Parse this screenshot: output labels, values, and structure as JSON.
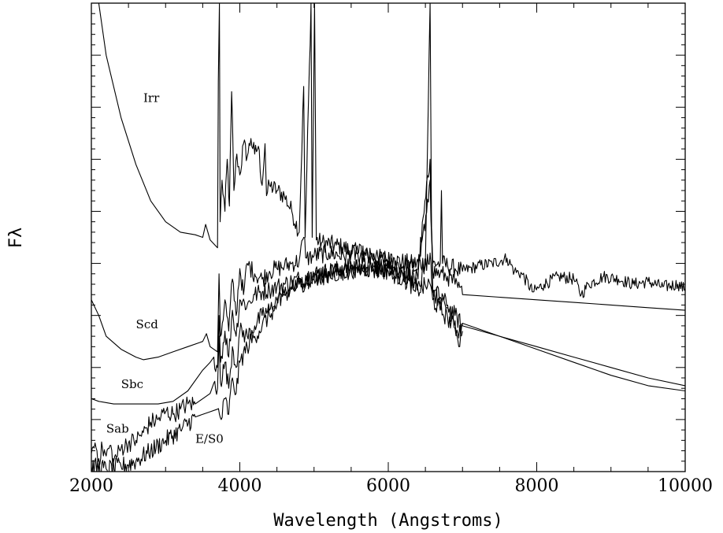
{
  "chart_data": {
    "type": "line",
    "title": "",
    "xlabel": "Wavelength (Angstroms)",
    "ylabel": "Fλ",
    "xlim": [
      2000,
      10000
    ],
    "ylim": [
      0,
      9
    ],
    "x_ticks": [
      "2000",
      "4000",
      "6000",
      "8000",
      "10000"
    ],
    "y_ticks_labeled": false,
    "grid": false,
    "legend": "none",
    "series": [
      {
        "name": "Irr",
        "label_at": [
          2700,
          7.1
        ],
        "points": [
          [
            2100,
            9.0
          ],
          [
            2200,
            8.0
          ],
          [
            2400,
            6.8
          ],
          [
            2600,
            5.9
          ],
          [
            2800,
            5.2
          ],
          [
            3000,
            4.8
          ],
          [
            3200,
            4.6
          ],
          [
            3400,
            4.55
          ],
          [
            3500,
            4.5
          ],
          [
            3540,
            4.75
          ],
          [
            3600,
            4.45
          ],
          [
            3700,
            4.3
          ],
          [
            3710,
            7.5
          ],
          [
            3725,
            9.0
          ],
          [
            3735,
            4.8
          ],
          [
            3760,
            5.6
          ],
          [
            3800,
            5.0
          ],
          [
            3830,
            6.0
          ],
          [
            3860,
            5.1
          ],
          [
            3890,
            7.3
          ],
          [
            3920,
            5.4
          ],
          [
            3960,
            6.1
          ],
          [
            4000,
            5.7
          ],
          [
            4050,
            6.3
          ],
          [
            4100,
            6.05
          ],
          [
            4150,
            6.4
          ],
          [
            4200,
            6.1
          ],
          [
            4250,
            6.25
          ],
          [
            4300,
            5.5
          ],
          [
            4340,
            6.3
          ],
          [
            4360,
            5.3
          ],
          [
            4400,
            5.5
          ],
          [
            4500,
            5.4
          ],
          [
            4600,
            5.3
          ],
          [
            4700,
            5.0
          ],
          [
            4800,
            4.6
          ],
          [
            4861,
            7.4
          ],
          [
            4880,
            4.5
          ],
          [
            4959,
            9.0
          ],
          [
            4975,
            4.5
          ],
          [
            5007,
            9.0
          ],
          [
            5030,
            4.45
          ],
          [
            5100,
            4.4
          ],
          [
            5300,
            4.35
          ],
          [
            5500,
            4.25
          ],
          [
            5700,
            4.15
          ],
          [
            5900,
            4.1
          ],
          [
            6100,
            4.05
          ],
          [
            6300,
            4.0
          ],
          [
            6500,
            4.0
          ],
          [
            6563,
            9.0
          ],
          [
            6583,
            4.7
          ],
          [
            6600,
            4.0
          ],
          [
            6700,
            4.0
          ],
          [
            6716,
            5.4
          ],
          [
            6731,
            4.0
          ],
          [
            6800,
            3.95
          ],
          [
            6900,
            3.9
          ],
          [
            7000,
            3.85
          ],
          [
            7200,
            3.95
          ],
          [
            7400,
            4.0
          ],
          [
            7600,
            4.1
          ],
          [
            7700,
            3.85
          ],
          [
            7800,
            3.8
          ],
          [
            7950,
            3.45
          ],
          [
            8100,
            3.6
          ],
          [
            8300,
            3.75
          ],
          [
            8500,
            3.7
          ],
          [
            8600,
            3.4
          ],
          [
            8700,
            3.6
          ],
          [
            8900,
            3.75
          ],
          [
            9100,
            3.7
          ],
          [
            9300,
            3.6
          ],
          [
            9500,
            3.65
          ],
          [
            9700,
            3.55
          ],
          [
            9900,
            3.6
          ],
          [
            10000,
            3.5
          ]
        ]
      },
      {
        "name": "Scd",
        "label_at": [
          2600,
          2.75
        ],
        "points": [
          [
            2000,
            3.3
          ],
          [
            2100,
            3.0
          ],
          [
            2200,
            2.6
          ],
          [
            2400,
            2.35
          ],
          [
            2600,
            2.2
          ],
          [
            2700,
            2.15
          ],
          [
            2900,
            2.2
          ],
          [
            3100,
            2.3
          ],
          [
            3300,
            2.4
          ],
          [
            3500,
            2.5
          ],
          [
            3550,
            2.65
          ],
          [
            3600,
            2.4
          ],
          [
            3700,
            2.3
          ],
          [
            3720,
            3.8
          ],
          [
            3740,
            2.6
          ],
          [
            3800,
            3.3
          ],
          [
            3850,
            2.7
          ],
          [
            3900,
            3.7
          ],
          [
            3950,
            3.0
          ],
          [
            4000,
            3.9
          ],
          [
            4050,
            3.4
          ],
          [
            4100,
            4.0
          ],
          [
            4200,
            3.8
          ],
          [
            4300,
            3.7
          ],
          [
            4400,
            3.85
          ],
          [
            4500,
            3.9
          ],
          [
            4600,
            3.95
          ],
          [
            4700,
            4.0
          ],
          [
            4800,
            4.05
          ],
          [
            4861,
            4.5
          ],
          [
            4900,
            4.1
          ],
          [
            5000,
            4.15
          ],
          [
            5200,
            4.2
          ],
          [
            5400,
            4.15
          ],
          [
            5600,
            4.2
          ],
          [
            5800,
            4.1
          ],
          [
            6000,
            4.05
          ],
          [
            6200,
            3.95
          ],
          [
            6400,
            3.9
          ],
          [
            6563,
            6.0
          ],
          [
            6600,
            3.85
          ],
          [
            6700,
            3.8
          ],
          [
            6800,
            3.75
          ],
          [
            6900,
            3.6
          ],
          [
            7000,
            3.4
          ],
          [
            7500,
            3.35
          ],
          [
            8000,
            3.3
          ],
          [
            8500,
            3.25
          ],
          [
            9000,
            3.2
          ],
          [
            9500,
            3.15
          ],
          [
            10000,
            3.1
          ]
        ]
      },
      {
        "name": "Sbc",
        "label_at": [
          2400,
          1.6
        ],
        "points": [
          [
            2000,
            1.4
          ],
          [
            2100,
            1.35
          ],
          [
            2300,
            1.3
          ],
          [
            2600,
            1.3
          ],
          [
            2900,
            1.3
          ],
          [
            3100,
            1.35
          ],
          [
            3300,
            1.55
          ],
          [
            3500,
            1.95
          ],
          [
            3600,
            2.1
          ],
          [
            3650,
            2.2
          ],
          [
            3700,
            2.0
          ],
          [
            3720,
            3.0
          ],
          [
            3740,
            2.1
          ],
          [
            3800,
            2.7
          ],
          [
            3850,
            2.2
          ],
          [
            3900,
            3.1
          ],
          [
            3950,
            2.6
          ],
          [
            4000,
            3.3
          ],
          [
            4100,
            3.2
          ],
          [
            4200,
            3.4
          ],
          [
            4300,
            3.45
          ],
          [
            4400,
            3.5
          ],
          [
            4500,
            3.55
          ],
          [
            4600,
            3.6
          ],
          [
            4700,
            3.65
          ],
          [
            4800,
            3.7
          ],
          [
            4900,
            3.75
          ],
          [
            5000,
            3.8
          ],
          [
            5200,
            3.85
          ],
          [
            5400,
            3.9
          ],
          [
            5600,
            3.95
          ],
          [
            5800,
            3.95
          ],
          [
            6000,
            3.9
          ],
          [
            6200,
            3.8
          ],
          [
            6400,
            3.7
          ],
          [
            6563,
            5.6
          ],
          [
            6600,
            3.5
          ],
          [
            6700,
            3.35
          ],
          [
            6800,
            3.2
          ],
          [
            6900,
            3.0
          ],
          [
            7000,
            2.8
          ],
          [
            7500,
            2.6
          ],
          [
            8000,
            2.4
          ],
          [
            8500,
            2.2
          ],
          [
            9000,
            2.0
          ],
          [
            9500,
            1.8
          ],
          [
            10000,
            1.65
          ]
        ]
      },
      {
        "name": "Sab",
        "label_at": [
          2200,
          0.75
        ],
        "points": [
          [
            2000,
            0.35
          ],
          [
            2050,
            0.55
          ],
          [
            2100,
            0.25
          ],
          [
            2150,
            0.45
          ],
          [
            2200,
            0.3
          ],
          [
            2250,
            0.5
          ],
          [
            2300,
            0.2
          ],
          [
            2400,
            0.45
          ],
          [
            2500,
            0.55
          ],
          [
            2600,
            0.6
          ],
          [
            2700,
            0.75
          ],
          [
            2800,
            0.95
          ],
          [
            2900,
            1.0
          ],
          [
            3000,
            1.15
          ],
          [
            3100,
            1.1
          ],
          [
            3200,
            1.2
          ],
          [
            3300,
            1.3
          ],
          [
            3400,
            1.3
          ],
          [
            3500,
            1.4
          ],
          [
            3600,
            1.5
          ],
          [
            3650,
            1.7
          ],
          [
            3700,
            1.6
          ],
          [
            3720,
            2.6
          ],
          [
            3740,
            1.7
          ],
          [
            3800,
            2.1
          ],
          [
            3850,
            1.6
          ],
          [
            3900,
            2.4
          ],
          [
            3950,
            2.0
          ],
          [
            4000,
            2.7
          ],
          [
            4100,
            2.6
          ],
          [
            4200,
            2.8
          ],
          [
            4300,
            3.0
          ],
          [
            4400,
            3.1
          ],
          [
            4500,
            3.3
          ],
          [
            4600,
            3.4
          ],
          [
            4700,
            3.5
          ],
          [
            4800,
            3.6
          ],
          [
            4900,
            3.65
          ],
          [
            5000,
            3.7
          ],
          [
            5200,
            3.8
          ],
          [
            5400,
            3.85
          ],
          [
            5600,
            3.9
          ],
          [
            5800,
            3.9
          ],
          [
            6000,
            3.9
          ],
          [
            6200,
            3.75
          ],
          [
            6400,
            3.6
          ],
          [
            6563,
            4.2
          ],
          [
            6600,
            3.45
          ],
          [
            6700,
            3.3
          ],
          [
            6800,
            3.15
          ],
          [
            6900,
            2.9
          ],
          [
            6950,
            2.4
          ],
          [
            7000,
            2.85
          ],
          [
            7500,
            2.6
          ],
          [
            8000,
            2.35
          ],
          [
            8500,
            2.1
          ],
          [
            9000,
            1.85
          ],
          [
            9500,
            1.65
          ],
          [
            10000,
            1.55
          ]
        ]
      },
      {
        "name": "E/S0",
        "label_at": [
          3400,
          0.55
        ],
        "points": [
          [
            2000,
            0.1
          ],
          [
            2200,
            0.05
          ],
          [
            2400,
            0.1
          ],
          [
            2600,
            0.2
          ],
          [
            2800,
            0.4
          ],
          [
            3000,
            0.6
          ],
          [
            3200,
            0.8
          ],
          [
            3400,
            1.05
          ],
          [
            3600,
            1.15
          ],
          [
            3700,
            1.2
          ],
          [
            3750,
            1.0
          ],
          [
            3800,
            1.4
          ],
          [
            3850,
            1.1
          ],
          [
            3900,
            1.8
          ],
          [
            3950,
            1.5
          ],
          [
            4000,
            2.1
          ],
          [
            4100,
            2.4
          ],
          [
            4200,
            2.6
          ],
          [
            4300,
            2.8
          ],
          [
            4400,
            3.0
          ],
          [
            4500,
            3.2
          ],
          [
            4600,
            3.4
          ],
          [
            4700,
            3.5
          ],
          [
            4800,
            3.6
          ],
          [
            4900,
            3.65
          ],
          [
            5000,
            3.7
          ],
          [
            5200,
            3.8
          ],
          [
            5400,
            3.85
          ],
          [
            5600,
            3.9
          ],
          [
            5800,
            3.9
          ],
          [
            6000,
            3.85
          ],
          [
            6200,
            3.7
          ],
          [
            6400,
            3.5
          ],
          [
            6563,
            3.6
          ],
          [
            6600,
            3.3
          ],
          [
            6700,
            3.1
          ],
          [
            6800,
            2.95
          ],
          [
            6900,
            2.75
          ],
          [
            7000,
            2.7
          ]
        ]
      }
    ]
  }
}
